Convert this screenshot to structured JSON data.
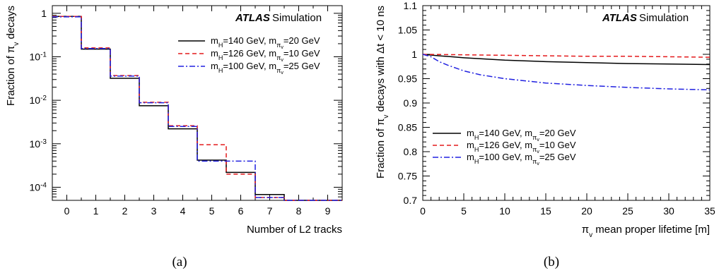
{
  "chart_data": [
    {
      "type": "step",
      "panel": "(a)",
      "atlas_label": "ATLAS",
      "sim_label": "Simulation",
      "xlabel": "Number of L2 tracks",
      "ylabel": "Fraction of π_v decays",
      "ylabel_parts": {
        "pre": "Fraction of π",
        "sub": "v",
        "post": " decays"
      },
      "xlim": [
        -0.5,
        9.5
      ],
      "ylim": [
        5e-05,
        1.5
      ],
      "yscale": "log",
      "x_ticks": [
        0,
        1,
        2,
        3,
        4,
        5,
        6,
        7,
        8,
        9
      ],
      "y_ticks": [
        {
          "v": 1,
          "label": "1",
          "base": "1",
          "exp": ""
        },
        {
          "v": 0.1,
          "label": "10^-1",
          "base": "10",
          "exp": "-1"
        },
        {
          "v": 0.01,
          "label": "10^-2",
          "base": "10",
          "exp": "-2"
        },
        {
          "v": 0.001,
          "label": "10^-3",
          "base": "10",
          "exp": "-3"
        },
        {
          "v": 0.0001,
          "label": "10^-4",
          "base": "10",
          "exp": "-4"
        }
      ],
      "bins": [
        0,
        1,
        2,
        3,
        4,
        5,
        6,
        7,
        8,
        9
      ],
      "series": [
        {
          "name": "m_H=140 GeV, m_πv=20 GeV",
          "parts": {
            "a": "m",
            "as": "H",
            "b": "=140 GeV, m",
            "bs": "π",
            "bss": "v",
            "c": "=20 GeV"
          },
          "color": "#000000",
          "dash": "",
          "values": [
            0.85,
            0.15,
            0.032,
            0.0075,
            0.0022,
            0.00042,
            0.00022,
            6.8e-05,
            5e-05,
            5e-05
          ]
        },
        {
          "name": "m_H=126 GeV, m_πv=10 GeV",
          "parts": {
            "a": "m",
            "as": "H",
            "b": "=126 GeV, m",
            "bs": "π",
            "bss": "v",
            "c": "=10 GeV"
          },
          "color": "#e41a1c",
          "dash": "6,4",
          "values": [
            0.85,
            0.16,
            0.037,
            0.009,
            0.0026,
            0.00095,
            0.0002,
            5.8e-05,
            5e-05,
            5e-05
          ]
        },
        {
          "name": "m_H=100 GeV, m_πv=25 GeV",
          "parts": {
            "a": "m",
            "as": "H",
            "b": "=100 GeV, m",
            "bs": "π",
            "bss": "v",
            "c": "=25 GeV"
          },
          "color": "#2020e0",
          "dash": "8,3,2,3",
          "values": [
            0.83,
            0.155,
            0.036,
            0.0088,
            0.0025,
            0.0004,
            0.0004,
            5.8e-05,
            5e-05,
            5e-05
          ]
        }
      ],
      "legend_position": "top-right",
      "caption": "(a)"
    },
    {
      "type": "line",
      "panel": "(b)",
      "atlas_label": "ATLAS",
      "sim_label": "Simulation",
      "xlabel": "π_v mean proper lifetime [m]",
      "xlabel_parts": {
        "pre": "π",
        "sub": "v",
        "post": " mean proper lifetime [m]"
      },
      "ylabel": "Fraction of π_v decays with Δt < 10 ns",
      "ylabel_parts": {
        "pre": "Fraction of π",
        "sub": "v",
        "post": " decays with Δt < 10 ns"
      },
      "xlim": [
        0,
        35
      ],
      "ylim": [
        0.7,
        1.1
      ],
      "x_ticks": [
        0,
        5,
        10,
        15,
        20,
        25,
        30,
        35
      ],
      "y_ticks": [
        0.7,
        0.75,
        0.8,
        0.85,
        0.9,
        0.95,
        1,
        1.05,
        1.1
      ],
      "series": [
        {
          "name": "m_H=140 GeV, m_πv=20 GeV",
          "parts": {
            "a": "m",
            "as": "H",
            "b": "=140 GeV, m",
            "bs": "π",
            "bss": "v",
            "c": "=20 GeV"
          },
          "color": "#000000",
          "dash": "",
          "x": [
            0,
            2,
            5,
            10,
            15,
            20,
            25,
            30,
            35
          ],
          "y": [
            1.0,
            0.997,
            0.993,
            0.988,
            0.985,
            0.983,
            0.981,
            0.98,
            0.979
          ]
        },
        {
          "name": "m_H=126 GeV, m_πv=10 GeV",
          "parts": {
            "a": "m",
            "as": "H",
            "b": "=126 GeV, m",
            "bs": "π",
            "bss": "v",
            "c": "=10 GeV"
          },
          "color": "#e41a1c",
          "dash": "6,4",
          "x": [
            0,
            5,
            10,
            15,
            20,
            25,
            30,
            35
          ],
          "y": [
            1.0,
            0.999,
            0.998,
            0.997,
            0.996,
            0.996,
            0.995,
            0.994
          ]
        },
        {
          "name": "m_H=100 GeV, m_πv=25 GeV",
          "parts": {
            "a": "m",
            "as": "H",
            "b": "=100 GeV, m",
            "bs": "π",
            "bss": "v",
            "c": "=25 GeV"
          },
          "color": "#2020e0",
          "dash": "8,3,2,3",
          "x": [
            0,
            1,
            2,
            3,
            4,
            5,
            7,
            10,
            15,
            20,
            25,
            30,
            35
          ],
          "y": [
            1.0,
            0.995,
            0.985,
            0.978,
            0.972,
            0.966,
            0.958,
            0.95,
            0.941,
            0.936,
            0.932,
            0.929,
            0.927
          ]
        }
      ],
      "legend_position": "bottom-left",
      "caption": "(b)"
    }
  ]
}
